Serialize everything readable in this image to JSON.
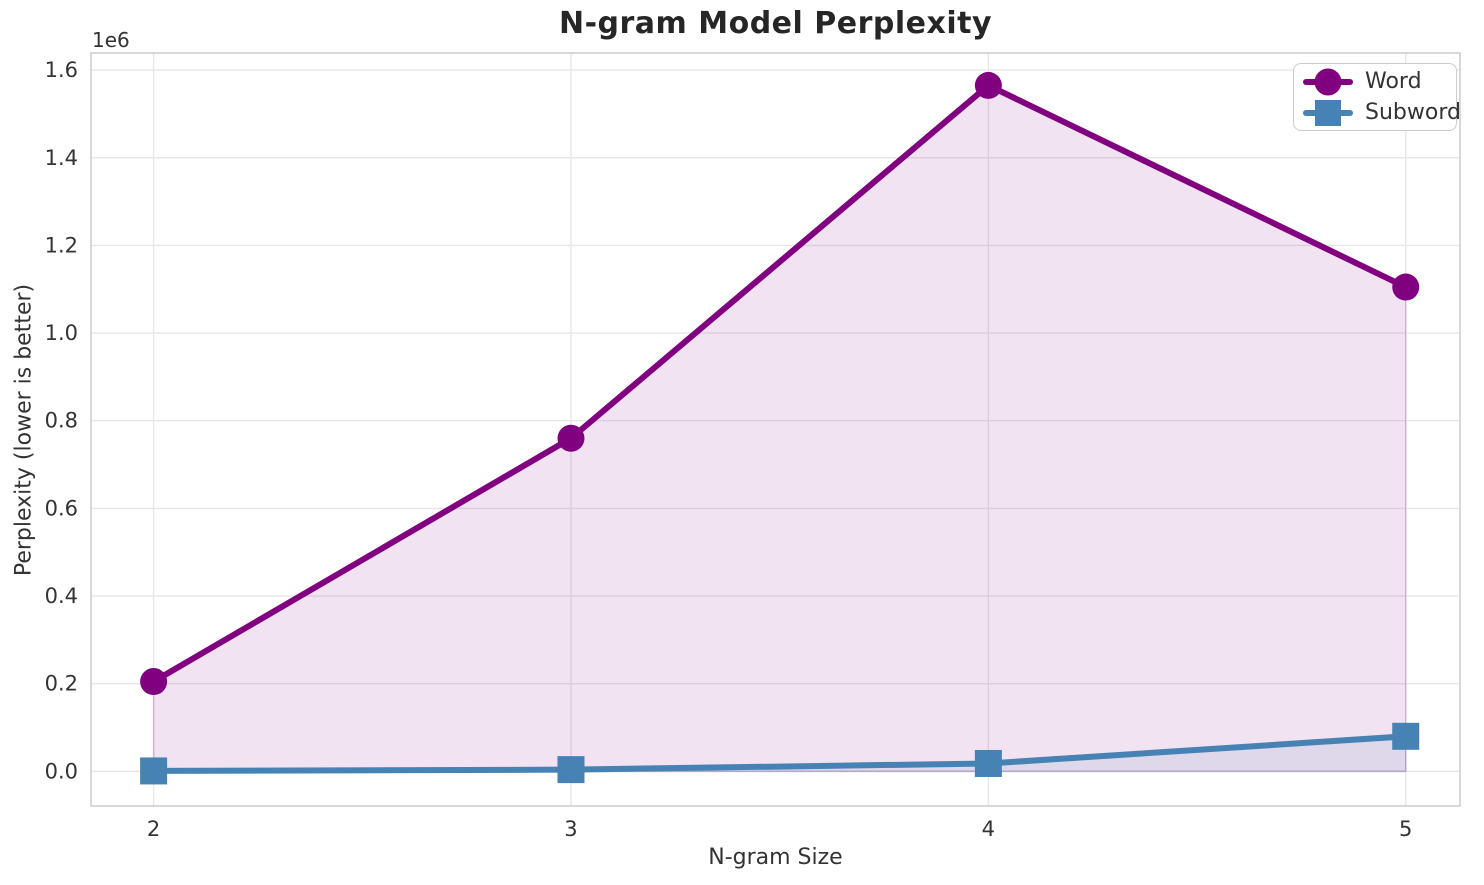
{
  "chart_data": {
    "type": "line",
    "title": "N-gram Model Perplexity",
    "xlabel": "N-gram Size",
    "ylabel": "Perplexity (lower is better)",
    "y_offset_text": "1e6",
    "x": [
      2,
      3,
      4,
      5
    ],
    "x_tick_labels": [
      "2",
      "3",
      "4",
      "5"
    ],
    "y_ticks": [
      0,
      200000,
      400000,
      600000,
      800000,
      1000000,
      1200000,
      1400000,
      1600000
    ],
    "y_tick_labels": [
      "0.0",
      "0.2",
      "0.4",
      "0.6",
      "0.8",
      "1.0",
      "1.2",
      "1.4",
      "1.6"
    ],
    "xlim": [
      1.85,
      5.13
    ],
    "ylim": [
      -79000,
      1639000
    ],
    "grid": true,
    "legend_position": "upper right",
    "series": [
      {
        "name": "Word",
        "color": "#800080",
        "marker": "circle",
        "fill_to_zero": true,
        "fill_alpha": 0.11,
        "values": [
          205000,
          760000,
          1565000,
          1105000
        ]
      },
      {
        "name": "Subword",
        "color": "#4682b4",
        "marker": "square",
        "fill_to_zero": true,
        "fill_alpha": 0.11,
        "values": [
          1000,
          4000,
          18000,
          80000
        ]
      }
    ]
  }
}
